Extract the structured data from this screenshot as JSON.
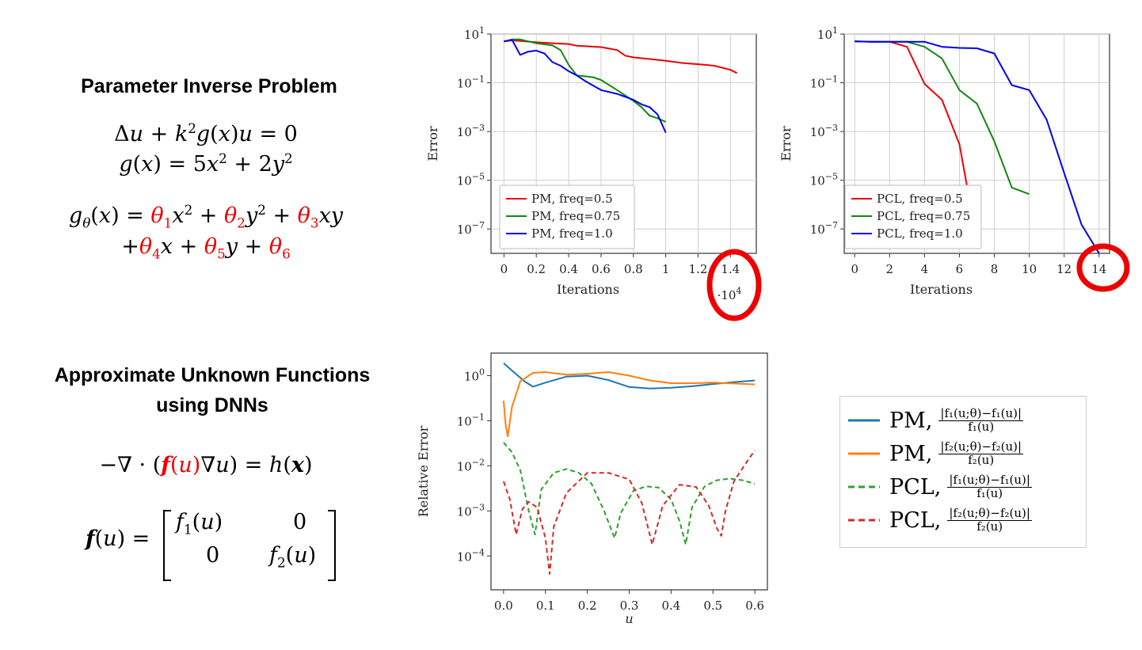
{
  "left_panel": {
    "heading1": "Parameter Inverse Problem",
    "eq1_line1": {
      "a": "Δ",
      "u": "u",
      "plus": " + ",
      "k": "k",
      "two": "2",
      "g": "g",
      "x": "x",
      "u2": "u",
      "rest": " = 0"
    },
    "heading2_line1": "Approximate Unknown Functions",
    "heading2_line2": "using DNNs"
  },
  "chart_data": [
    {
      "type": "line",
      "title": "",
      "xlabel": "Iterations",
      "ylabel": "Error",
      "x_multiplier": "·10^4",
      "yscale": "log",
      "xlim": [
        -0.08,
        1.56
      ],
      "ylim_exp": [
        -8,
        1
      ],
      "xticks": [
        "0",
        "0.2",
        "0.4",
        "0.6",
        "0.8",
        "1",
        "1.2",
        "1.4"
      ],
      "yticks": [
        "10^1",
        "10^-1",
        "10^-3",
        "10^-5",
        "10^-7"
      ],
      "grid": true,
      "legend": "bottom-left",
      "series": [
        {
          "name": "PM, freq=0.5",
          "color": "#ee0000",
          "x": [
            0,
            0.05,
            0.1,
            0.2,
            0.3,
            0.4,
            0.45,
            0.6,
            0.7,
            0.75,
            0.8,
            0.9,
            1.0,
            1.1,
            1.2,
            1.3,
            1.4,
            1.44
          ],
          "y": [
            5,
            5.5,
            5.2,
            4.6,
            4.2,
            3.9,
            3.3,
            2.9,
            2.2,
            1.3,
            1.1,
            0.95,
            0.8,
            0.65,
            0.58,
            0.5,
            0.34,
            0.25
          ]
        },
        {
          "name": "PM, freq=0.75",
          "color": "#118811",
          "x": [
            0,
            0.05,
            0.1,
            0.2,
            0.3,
            0.35,
            0.4,
            0.45,
            0.55,
            0.6,
            0.7,
            0.8,
            0.85,
            0.9,
            0.95,
            1.0
          ],
          "y": [
            5,
            6,
            6,
            4.2,
            3.4,
            2.2,
            0.55,
            0.2,
            0.17,
            0.13,
            0.05,
            0.018,
            0.01,
            0.0045,
            0.0035,
            0.0025
          ]
        },
        {
          "name": "PM, freq=1.0",
          "color": "#0000ee",
          "x": [
            0,
            0.05,
            0.1,
            0.15,
            0.2,
            0.25,
            0.3,
            0.35,
            0.4,
            0.45,
            0.5,
            0.6,
            0.7,
            0.8,
            0.85,
            0.9,
            0.95,
            1.0
          ],
          "y": [
            5,
            5.8,
            1.4,
            1.9,
            2.1,
            1.6,
            0.7,
            0.5,
            0.3,
            0.2,
            0.12,
            0.05,
            0.035,
            0.02,
            0.013,
            0.01,
            0.005,
            0.0009
          ]
        }
      ]
    },
    {
      "type": "line",
      "title": "",
      "xlabel": "Iterations",
      "ylabel": "Error",
      "yscale": "log",
      "xlim": [
        -0.6,
        14.6
      ],
      "ylim_exp": [
        -8,
        1
      ],
      "xticks": [
        "0",
        "2",
        "4",
        "6",
        "8",
        "10",
        "12",
        "14"
      ],
      "yticks": [
        "10^1",
        "10^-1",
        "10^-3",
        "10^-5",
        "10^-7"
      ],
      "grid": true,
      "legend": "bottom-left",
      "series": [
        {
          "name": "PCL, freq=0.5",
          "color": "#ee0000",
          "x": [
            0,
            1,
            2,
            3,
            4,
            5,
            6,
            6.7
          ],
          "y": [
            5,
            4.8,
            4.8,
            3,
            0.09,
            0.02,
            0.0003,
            5e-07
          ]
        },
        {
          "name": "PCL, freq=0.75",
          "color": "#118811",
          "x": [
            0,
            1,
            2,
            3,
            4,
            5,
            6,
            7,
            8,
            9,
            10
          ],
          "y": [
            5,
            4.8,
            4.8,
            4.8,
            3,
            1,
            0.05,
            0.014,
            0.0004,
            5e-06,
            2.7e-06
          ]
        },
        {
          "name": "PCL, freq=1.0",
          "color": "#0000ee",
          "x": [
            0,
            1,
            2,
            3,
            4,
            5,
            6,
            7,
            8,
            9,
            10,
            11,
            12,
            13,
            14
          ],
          "y": [
            5,
            4.8,
            4.8,
            4.8,
            4.8,
            3,
            2.7,
            2.6,
            1.6,
            0.08,
            0.05,
            0.003,
            2e-05,
            1.5e-07,
            1e-08
          ]
        }
      ]
    },
    {
      "type": "line",
      "title": "",
      "xlabel": "u",
      "ylabel": "Relative Error",
      "yscale": "log",
      "xlim": [
        -0.03,
        0.63
      ],
      "ylim_exp": [
        -4.75,
        0.5
      ],
      "xticks": [
        "0.0",
        "0.1",
        "0.2",
        "0.3",
        "0.4",
        "0.5",
        "0.6"
      ],
      "yticks": [
        "10^0",
        "10^-1",
        "10^-2",
        "10^-3",
        "10^-4"
      ],
      "grid": false,
      "series": [
        {
          "name": "PM, |f1(u;θ)−f1(u)| / f1(u)",
          "color": "#1f77b4",
          "style": "solid",
          "x": [
            0,
            0.02,
            0.05,
            0.07,
            0.1,
            0.15,
            0.2,
            0.25,
            0.3,
            0.35,
            0.4,
            0.45,
            0.5,
            0.55,
            0.6
          ],
          "y": [
            1.9,
            1.3,
            0.75,
            0.57,
            0.7,
            0.95,
            1.0,
            0.8,
            0.56,
            0.52,
            0.54,
            0.58,
            0.65,
            0.72,
            0.78
          ]
        },
        {
          "name": "PM, |f2(u;θ)−f2(u)| / f2(u)",
          "color": "#ff7f0e",
          "style": "solid",
          "x": [
            0,
            0.005,
            0.01,
            0.02,
            0.04,
            0.07,
            0.1,
            0.15,
            0.2,
            0.25,
            0.3,
            0.35,
            0.4,
            0.45,
            0.5,
            0.55,
            0.6
          ],
          "y": [
            0.28,
            0.08,
            0.045,
            0.2,
            0.75,
            1.15,
            1.2,
            1.05,
            1.1,
            1.2,
            1.0,
            0.78,
            0.68,
            0.68,
            0.7,
            0.67,
            0.64
          ]
        },
        {
          "name": "PCL, |f1(u;θ)−f1(u)| / f1(u)",
          "color": "#2ca02c",
          "style": "dashed",
          "x": [
            0,
            0.02,
            0.04,
            0.06,
            0.075,
            0.09,
            0.12,
            0.15,
            0.18,
            0.21,
            0.24,
            0.265,
            0.28,
            0.31,
            0.34,
            0.37,
            0.4,
            0.42,
            0.435,
            0.45,
            0.48,
            0.51,
            0.54,
            0.57,
            0.6
          ],
          "y": [
            0.033,
            0.02,
            0.008,
            0.001,
            0.0003,
            0.003,
            0.007,
            0.0085,
            0.007,
            0.004,
            0.001,
            0.00025,
            0.0009,
            0.0028,
            0.0035,
            0.0033,
            0.0018,
            0.0006,
            0.00018,
            0.0012,
            0.0035,
            0.0048,
            0.0052,
            0.0048,
            0.004
          ]
        },
        {
          "name": "PCL, |f2(u;θ)−f2(u)| / f2(u)",
          "color": "#d62728",
          "style": "dashed",
          "x": [
            0,
            0.015,
            0.03,
            0.045,
            0.06,
            0.08,
            0.1,
            0.11,
            0.12,
            0.15,
            0.2,
            0.25,
            0.3,
            0.33,
            0.355,
            0.38,
            0.42,
            0.46,
            0.49,
            0.51,
            0.52,
            0.53,
            0.55,
            0.58,
            0.6
          ],
          "y": [
            0.0045,
            0.0018,
            0.0003,
            0.0011,
            0.0016,
            0.0012,
            0.00025,
            4e-05,
            0.00045,
            0.0025,
            0.007,
            0.007,
            0.005,
            0.0015,
            0.00018,
            0.0013,
            0.0038,
            0.0034,
            0.0013,
            0.0004,
            0.00028,
            0.001,
            0.0045,
            0.012,
            0.022
          ]
        }
      ]
    }
  ],
  "legend_panel": {
    "pm": "PM,",
    "pcl": "PCL,",
    "num1": "|f₁(u;θ)−f₁(u)|",
    "den1": "f₁(u)",
    "num2": "|f₂(u;θ)−f₂(u)|",
    "den2": "f₂(u)"
  },
  "colors": {
    "highlight": "#ee0000"
  }
}
